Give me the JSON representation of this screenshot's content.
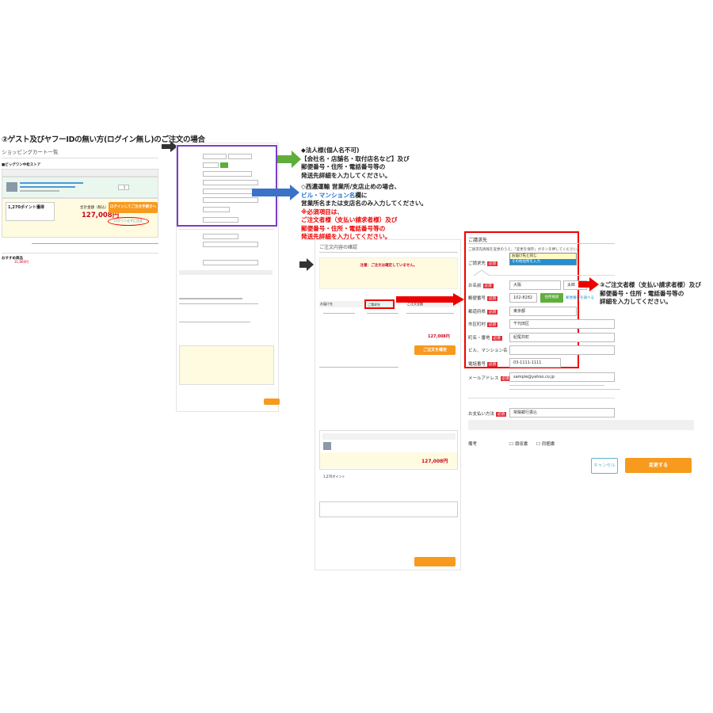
{
  "heading": "②ゲスト及びヤフーIDの無い方(ログイン無し)のご注文の場合",
  "cart": {
    "title": "ショッピングカート一覧",
    "store": "■ビッグワン中松ストア",
    "points": "1,270ポイント獲得",
    "total_label": "合計金額（税込）",
    "total": "127,008円",
    "login_button": "ログインしてご注文手続きへ",
    "guest_link": "ログインせずに注文",
    "quantity": "1",
    "recommend": "おすすめ商品",
    "rec_price": "31,800円"
  },
  "annotations": {
    "corporate": [
      "◆法人様(個人名不可)",
      "【会社名・店舗名・取付店名など】及び",
      "郵便番号・住所・電話番号等の",
      "発送先詳細を入力してください。"
    ],
    "seino": [
      "◇西濃運輸 営業所/支店止めの場合、"
    ],
    "seino_blue": "ビル・マンション名",
    "seino_rest": "欄に",
    "seino2": "営業所名または支店名のみ入力してください。",
    "required": [
      "※必須項目は、",
      "ご注文者様（支払い請求者様）及び",
      "郵便番号・住所・電話番号等の",
      "発送先詳細を入力してください。"
    ],
    "billing": [
      "③ご注文者様（支払い請求者様）及び",
      "郵便番号・住所・電話番号等の",
      "詳細を入力してください。"
    ]
  },
  "confirm": {
    "title": "ご注文内容の確認",
    "warning": "注意：ご注文は確定していません。",
    "tab_delivery": "お届け先",
    "tab_billing": "ご請求先",
    "tab_payment": "ご注文金額",
    "total": "127,008円",
    "big_total": "127,008円",
    "points": "1,270ポイント",
    "submit": "ご注文を確定"
  },
  "billing": {
    "title": "ご請求先",
    "note": "ご請求先情報を変更のうえ、「変更を保存」ボタンを押してください。",
    "label_billing": "ご請求先",
    "options": [
      "お届け先と同じ",
      "その他住所を入力"
    ],
    "required": "必須",
    "fields": [
      {
        "label": "お名前",
        "value": "大阪",
        "value2": "太郎"
      },
      {
        "label": "郵便番号",
        "value": "102-8282"
      },
      {
        "label": "都道府県",
        "value": "東京都"
      },
      {
        "label": "市区町村",
        "value": "千代田区"
      },
      {
        "label": "町名・番地",
        "value": "紀尾井町"
      },
      {
        "label": "ビル、マンション名",
        "value": ""
      },
      {
        "label": "電話番号",
        "value": "03-1111-1111"
      }
    ],
    "address_search": "住所検索",
    "postal_lookup": "郵便番号を調べる",
    "email_label": "メールアドレス",
    "email": "sample@yahoo.co.jp",
    "payment_label": "お支払い方法",
    "payment": "常陽銀行振込",
    "remarks_label": "備考",
    "check1": "領収書",
    "check2": "同梱書",
    "cancel": "キャンセル",
    "save": "変更する"
  },
  "colors": {
    "orange": "#f79a1e",
    "red": "#e00000",
    "purple": "#7a3fc4",
    "green": "#5fae3c",
    "blue": "#3a72c8"
  }
}
